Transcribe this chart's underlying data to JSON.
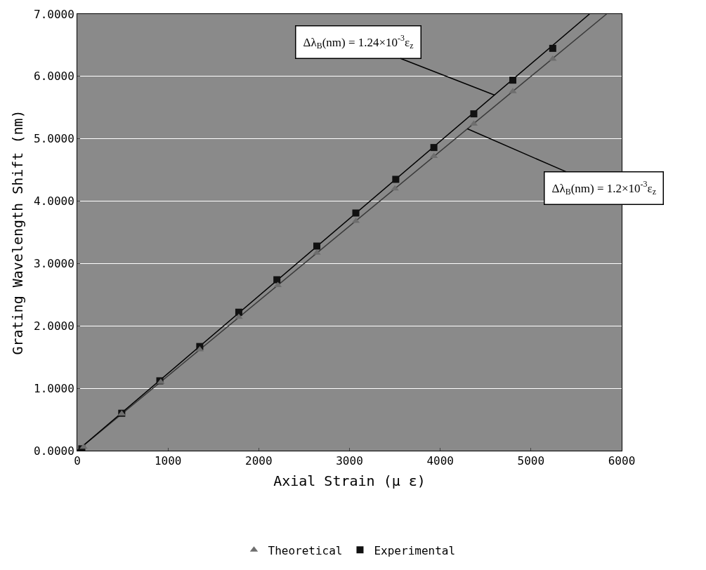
{
  "chart_data": {
    "type": "scatter",
    "xlabel": "Axial Strain (μ ε)",
    "ylabel": "Grating Wavelength Shift (nm)",
    "xlim": [
      0,
      6000
    ],
    "xticks": [
      0,
      1000,
      2000,
      3000,
      4000,
      5000,
      6000
    ],
    "ylim": [
      0,
      7
    ],
    "yticks": [
      {
        "value": 0,
        "label": "0.0000"
      },
      {
        "value": 1,
        "label": "1.0000"
      },
      {
        "value": 2,
        "label": "2.0000"
      },
      {
        "value": 3,
        "label": "3.0000"
      },
      {
        "value": 4,
        "label": "4.0000"
      },
      {
        "value": 5,
        "label": "5.0000"
      },
      {
        "value": 6,
        "label": "6.0000"
      },
      {
        "value": 7,
        "label": "7.0000"
      }
    ],
    "grid": "y",
    "legend": "bottom",
    "series": [
      {
        "name": "Theoretical",
        "color": "#6e6e6e",
        "marker": "triangle",
        "x": [
          70,
          490,
          920,
          1350,
          1780,
          2210,
          2640,
          3070,
          3500,
          3930,
          4370,
          4800,
          5240
        ],
        "values": [
          0.06,
          0.59,
          1.1,
          1.62,
          2.14,
          2.65,
          3.17,
          3.68,
          4.2,
          4.72,
          5.24,
          5.76,
          6.28
        ]
      },
      {
        "name": "Experimental",
        "color": "#111111",
        "marker": "square",
        "x": [
          50,
          490,
          910,
          1350,
          1780,
          2200,
          2640,
          3070,
          3510,
          3930,
          4370,
          4800,
          5240
        ],
        "values": [
          0.03,
          0.6,
          1.12,
          1.67,
          2.22,
          2.74,
          3.28,
          3.81,
          4.35,
          4.86,
          5.4,
          5.94,
          6.45
        ]
      },
      {
        "type": "line",
        "color": "#000000",
        "marker": "none",
        "x": [
          0,
          5645
        ],
        "values": [
          0,
          7
        ]
      },
      {
        "type": "line",
        "color": "#3a3a3a",
        "marker": "none",
        "x": [
          0,
          5833
        ],
        "values": [
          0,
          7
        ]
      }
    ],
    "annotations": [
      {
        "text": "Δλ$_{B}$(nm) = 1.24×10$^{-3}$ε$_{z}$",
        "x": 4600,
        "y": 5.7
      },
      {
        "text": "Δλ$_{B}$(nm) = 1.2×10$^{-3}$ε$_{z}$",
        "x": 4300,
        "y": 5.16
      }
    ]
  }
}
